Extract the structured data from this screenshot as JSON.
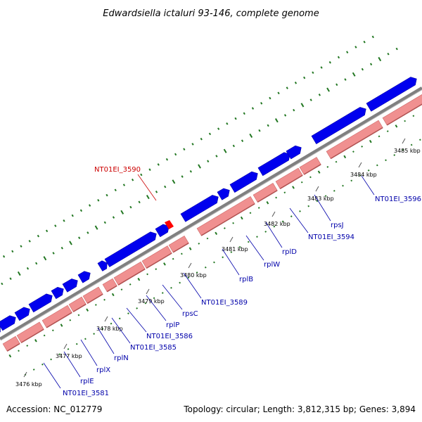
{
  "title": "Edwardsiella ictaluri 93-146, complete genome",
  "footer": {
    "accession": "Accession: NC_012779",
    "stats": "Topology: circular; Length: 3,812,315 bp; Genes: 3,894"
  },
  "colors": {
    "forward_gene": "#0000ee",
    "reverse_gene": "#f09090",
    "backbone": "#808080",
    "gc_ticks": "#227722",
    "gene_label": "#0000aa",
    "highlight_label": "#cc0000",
    "highlight_marker": "#ff0000"
  },
  "kbp_labels": [
    "3476 kbp",
    "3477 kbp",
    "3478 kbp",
    "3479 kbp",
    "3480 kbp",
    "3481 kbp",
    "3482 kbp",
    "3483 kbp",
    "3484 kbp",
    "3485 kbp"
  ],
  "gene_labels": [
    "NT01EI_3581",
    "rplE",
    "rplX",
    "rplN",
    "NT01EI_3585",
    "NT01EI_3586",
    "rplP",
    "rpsC",
    "NT01EI_3589",
    "rplB",
    "rplW",
    "rplD",
    "NT01EI_3594",
    "rpsJ",
    "NT01EI_3596"
  ],
  "highlight_label": "NT01EI_3590"
}
